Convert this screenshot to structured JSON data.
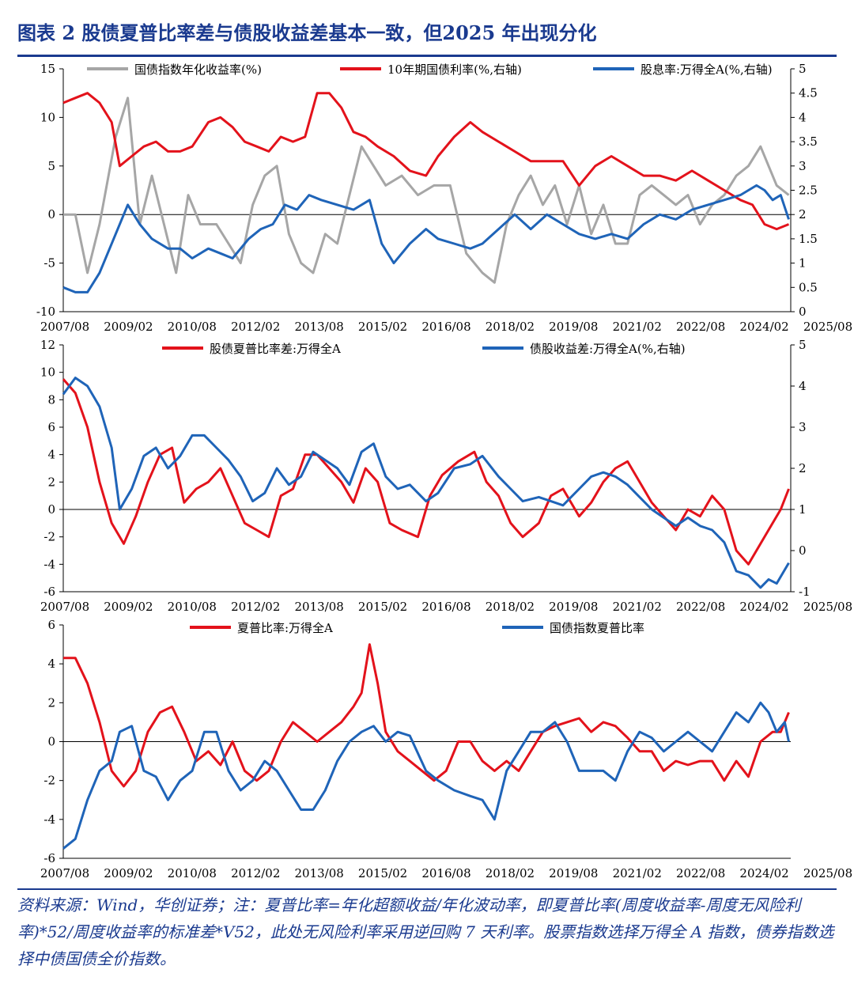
{
  "figure_title": "图表 2 股债夏普比率差与债股收益差基本一致，但2025 年出现分化",
  "source_note": "资料来源：Wind，华创证券；注：夏普比率=年化超额收益/年化波动率，即夏普比率(周度收益率-周度无风险利率)*52/周度收益率的标准差*V52，此处无风险利率采用逆回购 7 天利率。股票指数选择万得全 A 指数，债券指数选择中债国债全价指数。",
  "colors": {
    "gray": "#a6a6a6",
    "red": "#e3121b",
    "blue": "#1f64b8",
    "title": "#1a3a8f"
  },
  "chart_data": [
    {
      "type": "line",
      "x_labels": [
        "2007/08",
        "2009/02",
        "2010/08",
        "2012/02",
        "2013/08",
        "2015/02",
        "2016/08",
        "2018/02",
        "2019/08",
        "2021/02",
        "2022/08",
        "2024/02",
        "2025/08"
      ],
      "ylim": [
        -10,
        15
      ],
      "y_ticks": [
        "-10",
        "-5",
        "0",
        "5",
        "10",
        "15"
      ],
      "y2lim": [
        0,
        5
      ],
      "y2_ticks": [
        "0",
        "0.5",
        "1",
        "1.5",
        "2",
        "2.5",
        "3",
        "3.5",
        "4",
        "4.5",
        "5"
      ],
      "legend_position": "top",
      "series": [
        {
          "name": "国债指数年化收益率(%)",
          "color": "gray",
          "axis": "left",
          "x": [
            2007.6,
            2007.9,
            2008.2,
            2008.5,
            2008.9,
            2009.2,
            2009.5,
            2009.8,
            2010.1,
            2010.4,
            2010.7,
            2011.0,
            2011.4,
            2011.7,
            2012.0,
            2012.3,
            2012.6,
            2012.9,
            2013.2,
            2013.5,
            2013.8,
            2014.1,
            2014.4,
            2014.7,
            2015.0,
            2015.3,
            2015.6,
            2016.0,
            2016.4,
            2016.8,
            2017.2,
            2017.6,
            2018.0,
            2018.3,
            2018.6,
            2018.9,
            2019.2,
            2019.5,
            2019.8,
            2020.1,
            2020.4,
            2020.7,
            2021.0,
            2021.3,
            2021.6,
            2021.9,
            2022.2,
            2022.5,
            2022.8,
            2023.1,
            2023.4,
            2023.7,
            2024.0,
            2024.3,
            2024.6,
            2024.9,
            2025.1,
            2025.3,
            2025.6
          ],
          "y": [
            0,
            0,
            -6,
            -1,
            8,
            12,
            -1,
            4,
            -1,
            -6,
            2,
            -1,
            -1,
            -3,
            -5,
            1,
            4,
            5,
            -2,
            -5,
            -6,
            -2,
            -3,
            2,
            7,
            5,
            3,
            4,
            2,
            3,
            3,
            -4,
            -6,
            -7,
            -1,
            2,
            4,
            1,
            3,
            -1,
            3,
            -2,
            1,
            -3,
            -3,
            2,
            3,
            2,
            1,
            2,
            -1,
            1,
            2,
            4,
            5,
            7,
            5,
            3,
            2
          ]
        },
        {
          "name": "10年期国债利率(%,右轴)",
          "color": "red",
          "axis": "right",
          "x": [
            2007.6,
            2007.9,
            2008.2,
            2008.5,
            2008.8,
            2009.0,
            2009.3,
            2009.6,
            2009.9,
            2010.2,
            2010.5,
            2010.8,
            2011.2,
            2011.5,
            2011.8,
            2012.1,
            2012.4,
            2012.7,
            2013.0,
            2013.3,
            2013.6,
            2013.9,
            2014.2,
            2014.5,
            2014.8,
            2015.1,
            2015.4,
            2015.8,
            2016.2,
            2016.6,
            2016.9,
            2017.3,
            2017.7,
            2018.0,
            2018.4,
            2018.8,
            2019.2,
            2019.6,
            2020.0,
            2020.4,
            2020.8,
            2021.2,
            2021.6,
            2022.0,
            2022.4,
            2022.8,
            2023.2,
            2023.6,
            2024.0,
            2024.4,
            2024.7,
            2025.0,
            2025.3,
            2025.6
          ],
          "y": [
            4.3,
            4.4,
            4.5,
            4.3,
            3.9,
            3.0,
            3.2,
            3.4,
            3.5,
            3.3,
            3.3,
            3.4,
            3.9,
            4.0,
            3.8,
            3.5,
            3.4,
            3.3,
            3.6,
            3.5,
            3.6,
            4.5,
            4.5,
            4.2,
            3.7,
            3.6,
            3.4,
            3.2,
            2.9,
            2.8,
            3.2,
            3.6,
            3.9,
            3.7,
            3.5,
            3.3,
            3.1,
            3.1,
            3.1,
            2.6,
            3.0,
            3.2,
            3.0,
            2.8,
            2.8,
            2.7,
            2.9,
            2.7,
            2.5,
            2.3,
            2.2,
            1.8,
            1.7,
            1.8
          ]
        },
        {
          "name": "股息率:万得全A(%,右轴)",
          "color": "blue",
          "axis": "right",
          "x": [
            2007.6,
            2007.9,
            2008.2,
            2008.5,
            2008.9,
            2009.2,
            2009.5,
            2009.8,
            2010.2,
            2010.5,
            2010.8,
            2011.2,
            2011.5,
            2011.8,
            2012.2,
            2012.5,
            2012.8,
            2013.1,
            2013.4,
            2013.7,
            2014.0,
            2014.4,
            2014.8,
            2015.2,
            2015.5,
            2015.8,
            2016.2,
            2016.6,
            2016.9,
            2017.3,
            2017.7,
            2018.0,
            2018.4,
            2018.8,
            2019.2,
            2019.6,
            2020.0,
            2020.4,
            2020.8,
            2021.2,
            2021.6,
            2022.0,
            2022.4,
            2022.8,
            2023.2,
            2023.6,
            2024.0,
            2024.4,
            2024.8,
            2025.0,
            2025.2,
            2025.4,
            2025.6
          ],
          "y": [
            0.5,
            0.4,
            0.4,
            0.8,
            1.6,
            2.2,
            1.8,
            1.5,
            1.3,
            1.3,
            1.1,
            1.3,
            1.2,
            1.1,
            1.5,
            1.7,
            1.8,
            2.2,
            2.1,
            2.4,
            2.3,
            2.2,
            2.1,
            2.3,
            1.4,
            1.0,
            1.4,
            1.7,
            1.5,
            1.4,
            1.3,
            1.4,
            1.7,
            2.0,
            1.7,
            2.0,
            1.8,
            1.6,
            1.5,
            1.6,
            1.5,
            1.8,
            2.0,
            1.9,
            2.1,
            2.2,
            2.3,
            2.4,
            2.6,
            2.5,
            2.3,
            2.4,
            1.9
          ]
        }
      ]
    },
    {
      "type": "line",
      "x_labels": [
        "2007/08",
        "2009/02",
        "2010/08",
        "2012/02",
        "2013/08",
        "2015/02",
        "2016/08",
        "2018/02",
        "2019/08",
        "2021/02",
        "2022/08",
        "2024/02",
        "2025/08"
      ],
      "ylim": [
        -6,
        12
      ],
      "y_ticks": [
        "-6",
        "-4",
        "-2",
        "0",
        "2",
        "4",
        "6",
        "8",
        "10",
        "12"
      ],
      "y2lim": [
        -1,
        5
      ],
      "y2_ticks": [
        "-1",
        "0",
        "1",
        "2",
        "3",
        "4",
        "5"
      ],
      "legend_position": "top",
      "series": [
        {
          "name": "股债夏普比率差:万得全A",
          "color": "red",
          "axis": "left",
          "x": [
            2007.6,
            2007.9,
            2008.2,
            2008.5,
            2008.8,
            2009.1,
            2009.4,
            2009.7,
            2010.0,
            2010.3,
            2010.6,
            2010.9,
            2011.2,
            2011.5,
            2011.8,
            2012.1,
            2012.4,
            2012.7,
            2013.0,
            2013.3,
            2013.6,
            2013.9,
            2014.2,
            2014.5,
            2014.8,
            2015.1,
            2015.4,
            2015.7,
            2016.0,
            2016.4,
            2016.7,
            2017.0,
            2017.4,
            2017.8,
            2018.1,
            2018.4,
            2018.7,
            2019.0,
            2019.4,
            2019.7,
            2020.0,
            2020.4,
            2020.7,
            2021.0,
            2021.3,
            2021.6,
            2021.9,
            2022.2,
            2022.5,
            2022.8,
            2023.1,
            2023.4,
            2023.7,
            2024.0,
            2024.3,
            2024.6,
            2024.9,
            2025.2,
            2025.4,
            2025.6
          ],
          "y": [
            9.5,
            8.5,
            6,
            2,
            -1,
            -2.5,
            -0.5,
            2,
            4,
            4.5,
            0.5,
            1.5,
            2,
            3,
            1,
            -1,
            -1.5,
            -2,
            1,
            1.5,
            4,
            4,
            3,
            2,
            0.5,
            3,
            2,
            -1,
            -1.5,
            -2,
            1,
            2.5,
            3.5,
            4.2,
            2,
            1,
            -1,
            -2,
            -1,
            1,
            1.5,
            -0.5,
            0.5,
            2,
            3,
            3.5,
            2,
            0.5,
            -0.5,
            -1.5,
            0,
            -0.5,
            1,
            0,
            -3,
            -4,
            -2.5,
            -1,
            0,
            1.5
          ]
        },
        {
          "name": "债股收益差:万得全A(%,右轴)",
          "color": "blue",
          "axis": "right",
          "x": [
            2007.6,
            2007.9,
            2008.2,
            2008.5,
            2008.8,
            2009.0,
            2009.3,
            2009.6,
            2009.9,
            2010.2,
            2010.5,
            2010.8,
            2011.1,
            2011.4,
            2011.7,
            2012.0,
            2012.3,
            2012.6,
            2012.9,
            2013.2,
            2013.5,
            2013.8,
            2014.1,
            2014.4,
            2014.7,
            2015.0,
            2015.3,
            2015.6,
            2015.9,
            2016.2,
            2016.6,
            2016.9,
            2017.3,
            2017.7,
            2018.0,
            2018.4,
            2018.7,
            2019.0,
            2019.4,
            2019.7,
            2020.0,
            2020.4,
            2020.7,
            2021.0,
            2021.3,
            2021.6,
            2021.9,
            2022.2,
            2022.5,
            2022.8,
            2023.1,
            2023.4,
            2023.7,
            2024.0,
            2024.3,
            2024.6,
            2024.9,
            2025.1,
            2025.3,
            2025.6
          ],
          "y": [
            3.8,
            4.2,
            4.0,
            3.5,
            2.5,
            1.0,
            1.5,
            2.3,
            2.5,
            2.0,
            2.3,
            2.8,
            2.8,
            2.5,
            2.2,
            1.8,
            1.2,
            1.4,
            2.0,
            1.6,
            1.8,
            2.4,
            2.2,
            2.0,
            1.6,
            2.4,
            2.6,
            1.8,
            1.5,
            1.6,
            1.2,
            1.4,
            2.0,
            2.1,
            2.3,
            1.8,
            1.5,
            1.2,
            1.3,
            1.2,
            1.1,
            1.5,
            1.8,
            1.9,
            1.8,
            1.6,
            1.3,
            1.0,
            0.8,
            0.6,
            0.8,
            0.6,
            0.5,
            0.2,
            -0.5,
            -0.6,
            -0.9,
            -0.7,
            -0.8,
            -0.3
          ]
        }
      ]
    },
    {
      "type": "line",
      "x_labels": [
        "2007/08",
        "2009/02",
        "2010/08",
        "2012/02",
        "2013/08",
        "2015/02",
        "2016/08",
        "2018/02",
        "2019/08",
        "2021/02",
        "2022/08",
        "2024/02",
        "2025/08"
      ],
      "ylim": [
        -6,
        6
      ],
      "y_ticks": [
        "-6",
        "-4",
        "-2",
        "0",
        "2",
        "4",
        "6"
      ],
      "legend_position": "top",
      "series": [
        {
          "name": "夏普比率:万得全A",
          "color": "red",
          "axis": "left",
          "x": [
            2007.6,
            2007.9,
            2008.2,
            2008.5,
            2008.8,
            2009.1,
            2009.4,
            2009.7,
            2010.0,
            2010.3,
            2010.6,
            2010.9,
            2011.2,
            2011.5,
            2011.8,
            2012.1,
            2012.4,
            2012.7,
            2013.0,
            2013.3,
            2013.6,
            2013.9,
            2014.2,
            2014.5,
            2014.8,
            2015.0,
            2015.2,
            2015.4,
            2015.6,
            2015.9,
            2016.2,
            2016.5,
            2016.8,
            2017.1,
            2017.4,
            2017.7,
            2018.0,
            2018.3,
            2018.6,
            2018.9,
            2019.2,
            2019.5,
            2019.8,
            2020.1,
            2020.4,
            2020.7,
            2021.0,
            2021.3,
            2021.6,
            2021.9,
            2022.2,
            2022.5,
            2022.8,
            2023.1,
            2023.4,
            2023.7,
            2024.0,
            2024.3,
            2024.6,
            2024.9,
            2025.2,
            2025.4,
            2025.6
          ],
          "y": [
            4.3,
            4.3,
            3,
            1,
            -1.5,
            -2.3,
            -1.5,
            0.5,
            1.5,
            1.8,
            0.5,
            -1,
            -0.5,
            -1.2,
            0,
            -1.5,
            -2,
            -1.5,
            0,
            1,
            0.5,
            0,
            0.5,
            1,
            1.8,
            2.5,
            5,
            3,
            0.5,
            -0.5,
            -1,
            -1.5,
            -2,
            -1.5,
            0,
            0,
            -1,
            -1.5,
            -1,
            -1.5,
            -0.5,
            0.5,
            0.8,
            1,
            1.2,
            0.5,
            1,
            0.8,
            0.2,
            -0.5,
            -0.5,
            -1.5,
            -1,
            -1.2,
            -1,
            -1,
            -2,
            -1,
            -1.8,
            0,
            0.5,
            0.5,
            1.5
          ]
        },
        {
          "name": "国债指数夏普比率",
          "color": "blue",
          "axis": "left",
          "x": [
            2007.6,
            2007.9,
            2008.2,
            2008.5,
            2008.8,
            2009.0,
            2009.3,
            2009.6,
            2009.9,
            2010.2,
            2010.5,
            2010.8,
            2011.1,
            2011.4,
            2011.7,
            2012.0,
            2012.3,
            2012.6,
            2012.9,
            2013.2,
            2013.5,
            2013.8,
            2014.1,
            2014.4,
            2014.7,
            2015.0,
            2015.3,
            2015.6,
            2015.9,
            2016.2,
            2016.6,
            2016.9,
            2017.3,
            2017.7,
            2018.0,
            2018.3,
            2018.6,
            2018.9,
            2019.2,
            2019.5,
            2019.8,
            2020.1,
            2020.4,
            2020.7,
            2021.0,
            2021.3,
            2021.6,
            2021.9,
            2022.2,
            2022.5,
            2022.8,
            2023.1,
            2023.4,
            2023.7,
            2024.0,
            2024.3,
            2024.6,
            2024.9,
            2025.1,
            2025.3,
            2025.5,
            2025.6
          ],
          "y": [
            -5.5,
            -5,
            -3,
            -1.5,
            -1,
            0.5,
            0.8,
            -1.5,
            -1.8,
            -3,
            -2,
            -1.5,
            0.5,
            0.5,
            -1.5,
            -2.5,
            -2,
            -1,
            -1.5,
            -2.5,
            -3.5,
            -3.5,
            -2.5,
            -1,
            0,
            0.5,
            0.8,
            0,
            0.5,
            0.3,
            -1.5,
            -2,
            -2.5,
            -2.8,
            -3,
            -4,
            -1.5,
            -0.5,
            0.5,
            0.5,
            1,
            0,
            -1.5,
            -1.5,
            -1.5,
            -2,
            -0.5,
            0.5,
            0.2,
            -0.5,
            0,
            0.5,
            0,
            -0.5,
            0.5,
            1.5,
            1,
            2,
            1.5,
            0.5,
            1,
            0
          ]
        }
      ]
    }
  ]
}
